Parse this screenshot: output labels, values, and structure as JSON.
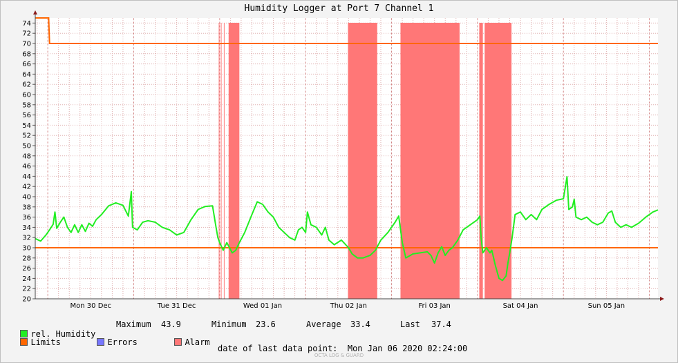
{
  "chart_data": {
    "type": "line",
    "title": "Humidity Logger at Port 7 Channel 1",
    "xlabel": "",
    "ylabel": "",
    "ylim": [
      20,
      75
    ],
    "yticks": [
      20,
      22,
      24,
      26,
      28,
      30,
      32,
      34,
      36,
      38,
      40,
      42,
      44,
      46,
      48,
      50,
      52,
      54,
      56,
      58,
      60,
      62,
      64,
      66,
      68,
      70,
      72,
      74
    ],
    "x_domain": [
      "2019-12-29T20:30",
      "2020-01-06T02:24"
    ],
    "day_labels": [
      {
        "t": "2019-12-30T12:00",
        "label": "Mon 30 Dec"
      },
      {
        "t": "2019-12-31T12:00",
        "label": "Tue 31 Dec"
      },
      {
        "t": "2020-01-01T12:00",
        "label": "Wed 01 Jan"
      },
      {
        "t": "2020-01-02T12:00",
        "label": "Thu 02 Jan"
      },
      {
        "t": "2020-01-03T12:00",
        "label": "Fri 03 Jan"
      },
      {
        "t": "2020-01-04T12:00",
        "label": "Sat 04 Jan"
      },
      {
        "t": "2020-01-05T12:00",
        "label": "Sun 05 Jan"
      }
    ],
    "grid": true,
    "legend": "bottom",
    "series": [
      {
        "name": "rel. Humidity",
        "color": "#22ee22",
        "points": [
          [
            "2019-12-29T20:30",
            31.8
          ],
          [
            "2019-12-29T22:00",
            31.3
          ],
          [
            "2019-12-29T23:30",
            32.5
          ],
          [
            "2019-12-30T00:30",
            33.5
          ],
          [
            "2019-12-30T01:30",
            34.6
          ],
          [
            "2019-12-30T02:00",
            37.0
          ],
          [
            "2019-12-30T02:30",
            33.8
          ],
          [
            "2019-12-30T03:30",
            35.0
          ],
          [
            "2019-12-30T04:30",
            36.0
          ],
          [
            "2019-12-30T05:30",
            34.0
          ],
          [
            "2019-12-30T06:30",
            33.0
          ],
          [
            "2019-12-30T07:30",
            34.5
          ],
          [
            "2019-12-30T08:30",
            33.0
          ],
          [
            "2019-12-30T09:30",
            34.5
          ],
          [
            "2019-12-30T10:30",
            33.2
          ],
          [
            "2019-12-30T11:30",
            34.8
          ],
          [
            "2019-12-30T12:30",
            34.2
          ],
          [
            "2019-12-30T13:30",
            35.5
          ],
          [
            "2019-12-30T15:00",
            36.5
          ],
          [
            "2019-12-30T17:00",
            38.2
          ],
          [
            "2019-12-30T19:00",
            38.8
          ],
          [
            "2019-12-30T21:00",
            38.3
          ],
          [
            "2019-12-30T22:30",
            36.2
          ],
          [
            "2019-12-30T23:20",
            41.0
          ],
          [
            "2019-12-30T23:40",
            34.0
          ],
          [
            "2019-12-31T01:00",
            33.5
          ],
          [
            "2019-12-31T02:30",
            35.0
          ],
          [
            "2019-12-31T04:00",
            35.3
          ],
          [
            "2019-12-31T06:00",
            35.0
          ],
          [
            "2019-12-31T08:00",
            34.0
          ],
          [
            "2019-12-31T10:00",
            33.5
          ],
          [
            "2019-12-31T12:00",
            32.5
          ],
          [
            "2019-12-31T14:00",
            33.0
          ],
          [
            "2019-12-31T16:00",
            35.5
          ],
          [
            "2019-12-31T18:00",
            37.5
          ],
          [
            "2019-12-31T20:00",
            38.1
          ],
          [
            "2019-12-31T22:00",
            38.2
          ],
          [
            "2019-12-31T23:00",
            34.0
          ],
          [
            "2019-12-31T23:30",
            32.0
          ],
          [
            "2020-01-01T00:00",
            31.0
          ],
          [
            "2020-01-01T01:00",
            29.5
          ],
          [
            "2020-01-01T02:00",
            31.0
          ],
          [
            "2020-01-01T03:30",
            29.0
          ],
          [
            "2020-01-01T04:30",
            29.5
          ],
          [
            "2020-01-01T05:30",
            31.0
          ],
          [
            "2020-01-01T07:00",
            33.0
          ],
          [
            "2020-01-01T09:00",
            36.5
          ],
          [
            "2020-01-01T10:30",
            39.0
          ],
          [
            "2020-01-01T12:00",
            38.5
          ],
          [
            "2020-01-01T13:30",
            37.0
          ],
          [
            "2020-01-01T15:00",
            36.0
          ],
          [
            "2020-01-01T16:30",
            34.0
          ],
          [
            "2020-01-01T18:00",
            33.0
          ],
          [
            "2020-01-01T19:30",
            32.0
          ],
          [
            "2020-01-01T21:00",
            31.5
          ],
          [
            "2020-01-01T22:00",
            33.5
          ],
          [
            "2020-01-01T23:00",
            34.0
          ],
          [
            "2020-01-02T00:00",
            33.0
          ],
          [
            "2020-01-02T00:30",
            37.0
          ],
          [
            "2020-01-02T01:30",
            34.5
          ],
          [
            "2020-01-02T03:00",
            34.0
          ],
          [
            "2020-01-02T04:30",
            32.5
          ],
          [
            "2020-01-02T05:30",
            34.0
          ],
          [
            "2020-01-02T06:30",
            31.5
          ],
          [
            "2020-01-02T08:00",
            30.6
          ],
          [
            "2020-01-02T10:00",
            31.5
          ],
          [
            "2020-01-02T12:00",
            30.0
          ],
          [
            "2020-01-02T13:00",
            28.8
          ],
          [
            "2020-01-02T14:30",
            28.0
          ],
          [
            "2020-01-02T16:00",
            28.0
          ],
          [
            "2020-01-02T18:00",
            28.5
          ],
          [
            "2020-01-02T19:30",
            29.5
          ],
          [
            "2020-01-02T21:00",
            31.5
          ],
          [
            "2020-01-02T23:00",
            33.0
          ],
          [
            "2020-01-03T01:00",
            35.0
          ],
          [
            "2020-01-03T02:00",
            36.2
          ],
          [
            "2020-01-03T03:00",
            31.0
          ],
          [
            "2020-01-03T04:00",
            28.0
          ],
          [
            "2020-01-03T06:00",
            28.8
          ],
          [
            "2020-01-03T08:00",
            29.0
          ],
          [
            "2020-01-03T10:00",
            29.2
          ],
          [
            "2020-01-03T11:00",
            28.5
          ],
          [
            "2020-01-03T12:00",
            27.0
          ],
          [
            "2020-01-03T13:00",
            29.0
          ],
          [
            "2020-01-03T14:00",
            30.2
          ],
          [
            "2020-01-03T15:00",
            28.5
          ],
          [
            "2020-01-03T16:00",
            29.5
          ],
          [
            "2020-01-03T17:00",
            30.0
          ],
          [
            "2020-01-03T18:30",
            31.5
          ],
          [
            "2020-01-03T20:00",
            33.5
          ],
          [
            "2020-01-03T22:00",
            34.5
          ],
          [
            "2020-01-04T00:00",
            35.5
          ],
          [
            "2020-01-04T00:40",
            36.2
          ],
          [
            "2020-01-04T01:00",
            32.0
          ],
          [
            "2020-01-04T01:30",
            29.0
          ],
          [
            "2020-01-04T02:30",
            30.0
          ],
          [
            "2020-01-04T03:30",
            29.0
          ],
          [
            "2020-01-04T04:00",
            29.5
          ],
          [
            "2020-01-04T05:00",
            26.5
          ],
          [
            "2020-01-04T06:00",
            24.0
          ],
          [
            "2020-01-04T07:00",
            23.6
          ],
          [
            "2020-01-04T08:00",
            24.5
          ],
          [
            "2020-01-04T08:30",
            27.0
          ],
          [
            "2020-01-04T09:00",
            29.0
          ],
          [
            "2020-01-04T09:40",
            32.0
          ],
          [
            "2020-01-04T10:30",
            36.5
          ],
          [
            "2020-01-04T12:00",
            37.0
          ],
          [
            "2020-01-04T13:30",
            35.5
          ],
          [
            "2020-01-04T15:00",
            36.5
          ],
          [
            "2020-01-04T16:30",
            35.5
          ],
          [
            "2020-01-04T18:00",
            37.5
          ],
          [
            "2020-01-04T20:00",
            38.5
          ],
          [
            "2020-01-04T22:00",
            39.3
          ],
          [
            "2020-01-05T00:00",
            39.6
          ],
          [
            "2020-01-05T01:00",
            43.9
          ],
          [
            "2020-01-05T01:30",
            37.5
          ],
          [
            "2020-01-05T02:30",
            38.0
          ],
          [
            "2020-01-05T03:00",
            39.5
          ],
          [
            "2020-01-05T03:30",
            36.0
          ],
          [
            "2020-01-05T05:00",
            35.5
          ],
          [
            "2020-01-05T06:30",
            36.0
          ],
          [
            "2020-01-05T08:00",
            35.0
          ],
          [
            "2020-01-05T09:30",
            34.5
          ],
          [
            "2020-01-05T11:00",
            35.0
          ],
          [
            "2020-01-05T12:30",
            36.8
          ],
          [
            "2020-01-05T13:30",
            37.2
          ],
          [
            "2020-01-05T14:30",
            35.0
          ],
          [
            "2020-01-05T16:00",
            34.0
          ],
          [
            "2020-01-05T17:30",
            34.5
          ],
          [
            "2020-01-05T19:00",
            34.0
          ],
          [
            "2020-01-05T21:00",
            34.8
          ],
          [
            "2020-01-05T23:00",
            36.0
          ],
          [
            "2020-01-06T01:00",
            37.0
          ],
          [
            "2020-01-06T02:24",
            37.4
          ]
        ]
      },
      {
        "name": "Limits",
        "color": "#ff6600",
        "upper": [
          [
            "2019-12-29T20:30",
            75
          ],
          [
            "2019-12-30T00:15",
            75
          ],
          [
            "2019-12-30T00:30",
            70
          ],
          [
            "2020-01-06T02:24",
            70
          ]
        ],
        "lower": [
          [
            "2019-12-29T20:30",
            30
          ],
          [
            "2020-01-06T02:24",
            30
          ]
        ]
      },
      {
        "name": "Errors",
        "color": "#7777ff",
        "points": []
      },
      {
        "name": "Alarm",
        "color": "#ff7777",
        "bands": [
          [
            "2019-12-31T23:45",
            "2019-12-31T23:55"
          ],
          [
            "2020-01-01T00:20",
            "2020-01-01T00:30"
          ],
          [
            "2020-01-01T01:10",
            "2020-01-01T01:20"
          ],
          [
            "2020-01-01T02:30",
            "2020-01-01T05:30"
          ],
          [
            "2020-01-02T11:50",
            "2020-01-02T12:00"
          ],
          [
            "2020-01-02T12:00",
            "2020-01-02T20:00"
          ],
          [
            "2020-01-03T02:30",
            "2020-01-03T19:00"
          ],
          [
            "2020-01-04T00:30",
            "2020-01-04T01:30"
          ],
          [
            "2020-01-04T02:00",
            "2020-01-04T09:30"
          ]
        ]
      }
    ]
  },
  "legend": {
    "humidity_label": "rel. Humidity",
    "limits_label": "Limits",
    "errors_label": "Errors",
    "alarm_label": "Alarm"
  },
  "stats": {
    "maximum_label": "Maximum",
    "maximum_value": "43.9",
    "minimum_label": "Minimum",
    "minimum_value": "23.6",
    "average_label": "Average",
    "average_value": "33.4",
    "last_label": "Last",
    "last_value": "37.4"
  },
  "footer": {
    "last_point": "date of last data point:  Mon Jan 06 2020 02:24:00",
    "watermark": "OCTA LOG & GUARD"
  }
}
